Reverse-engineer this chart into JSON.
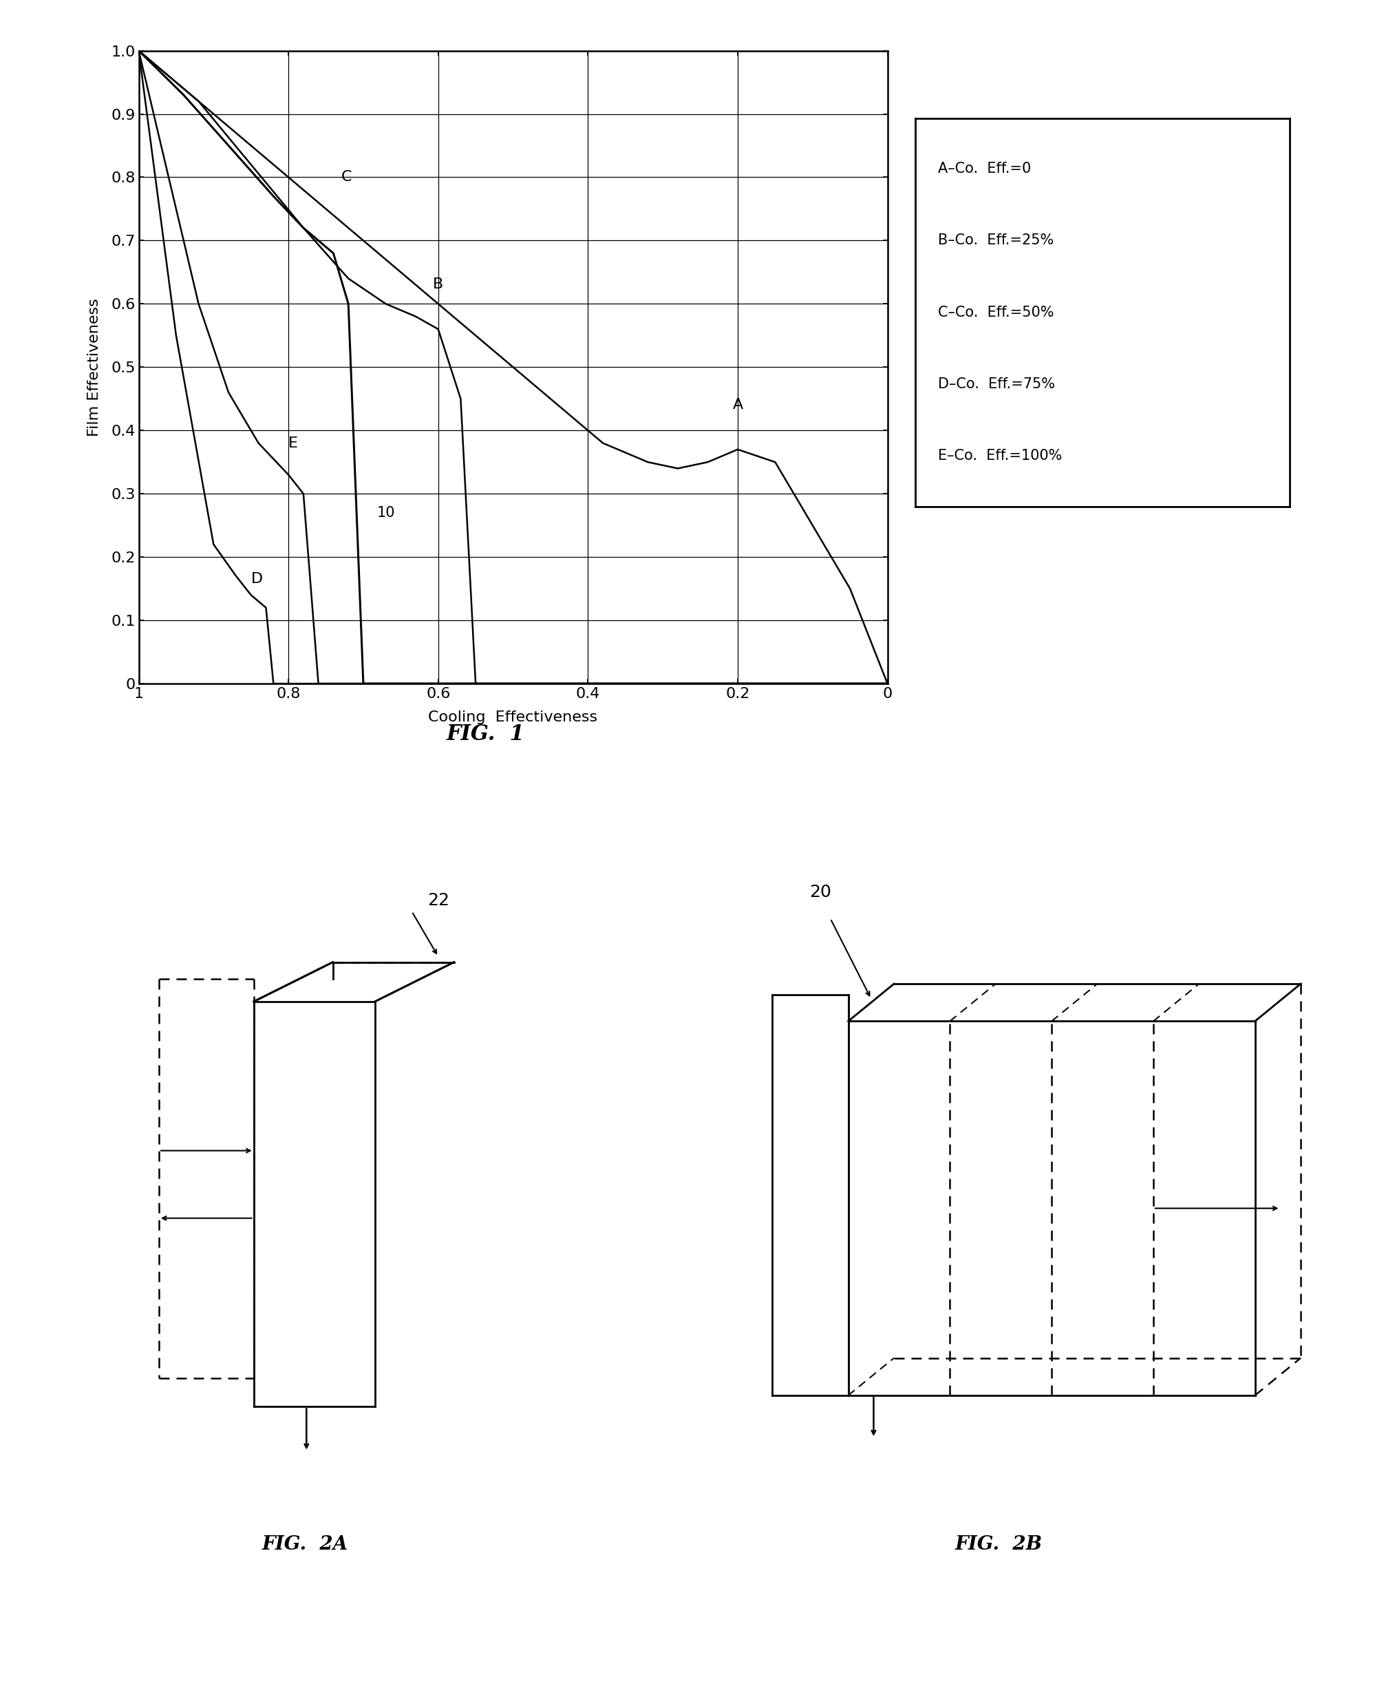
{
  "fig_width": 20.15,
  "fig_height": 24.52,
  "bg_color": "#ffffff",
  "xlabel": "Cooling  Effectiveness",
  "ylabel": "Film Effectiveness",
  "xticks": [
    0,
    0.2,
    0.4,
    0.6,
    0.8,
    1.0
  ],
  "yticks": [
    0,
    0.1,
    0.2,
    0.3,
    0.4,
    0.5,
    0.6,
    0.7,
    0.8,
    0.9,
    1.0
  ],
  "legend_entries": [
    "A–Co.  Eff.=0",
    "B–Co.  Eff.=25%",
    "C–Co.  Eff.=50%",
    "D–Co.  Eff.=75%",
    "E–Co.  Eff.=100%"
  ],
  "fig1_caption": "FIG.  1",
  "fig2a_caption": "FIG.  2A",
  "fig2b_caption": "FIG.  2B",
  "label_22": "22",
  "label_20": "20"
}
